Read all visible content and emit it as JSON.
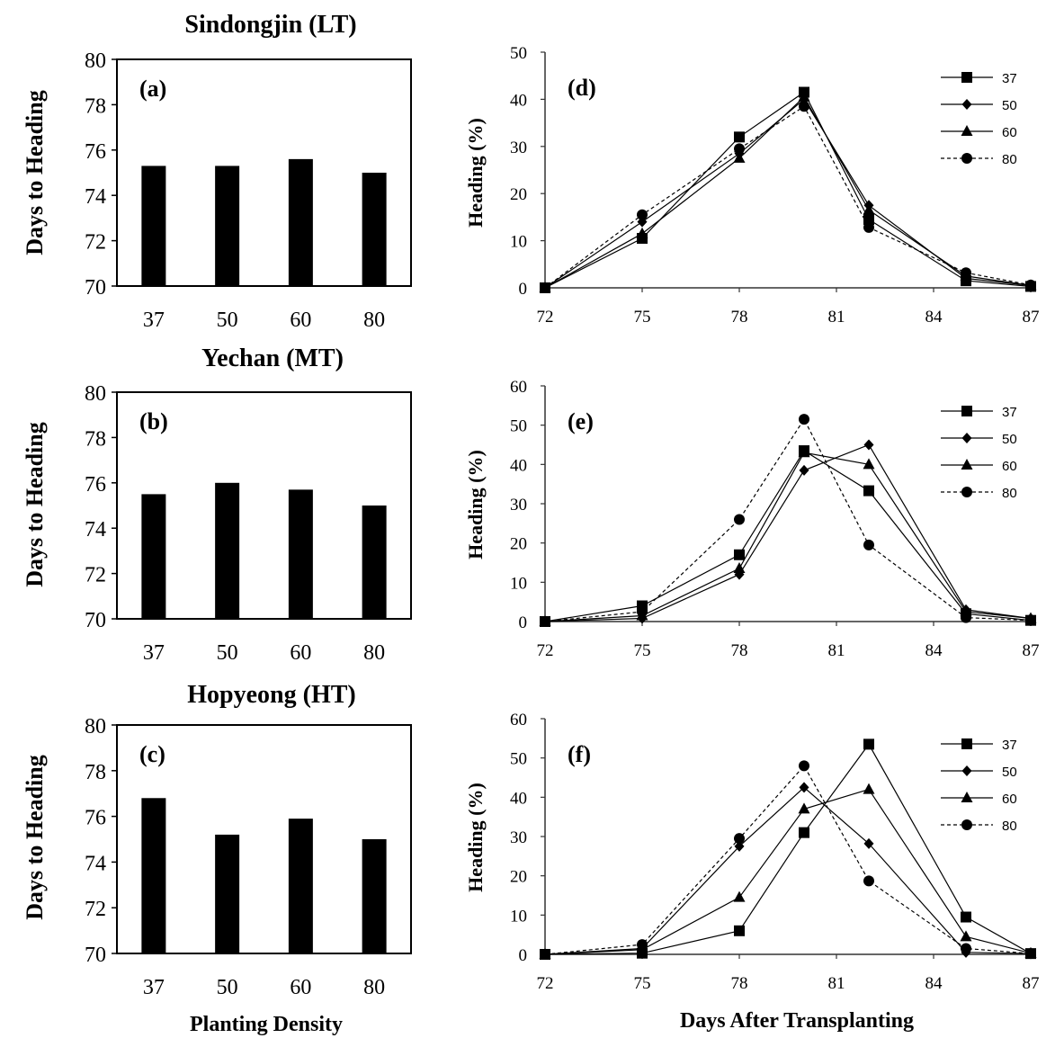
{
  "figure": {
    "titles": [
      "Sindongjin (LT)",
      "Yechan (MT)",
      "Hopyeong (HT)"
    ],
    "bar_ylabel": "Days to Heading",
    "bar_xlabel": "Planting Density",
    "line_ylabel": "Heading (%)",
    "line_xlabel": "Days After Transplanting"
  },
  "chart_data": [
    {
      "type": "bar",
      "panel": "(a)",
      "categories": [
        "37",
        "50",
        "60",
        "80"
      ],
      "values": [
        75.3,
        75.3,
        75.6,
        75.0
      ],
      "ylabel": "Days to Heading",
      "ylim": [
        70,
        80
      ],
      "yticks": [
        70,
        72,
        74,
        76,
        78,
        80
      ],
      "color": "#000000"
    },
    {
      "type": "bar",
      "panel": "(b)",
      "categories": [
        "37",
        "50",
        "60",
        "80"
      ],
      "values": [
        75.5,
        76.0,
        75.7,
        75.0
      ],
      "ylabel": "Days to Heading",
      "ylim": [
        70,
        80
      ],
      "yticks": [
        70,
        72,
        74,
        76,
        78,
        80
      ],
      "color": "#000000"
    },
    {
      "type": "bar",
      "panel": "(c)",
      "categories": [
        "37",
        "50",
        "60",
        "80"
      ],
      "values": [
        76.8,
        75.2,
        75.9,
        75.0
      ],
      "ylabel": "Days to Heading",
      "xlabel": "Planting Density",
      "ylim": [
        70,
        80
      ],
      "yticks": [
        70,
        72,
        74,
        76,
        78,
        80
      ],
      "color": "#000000"
    },
    {
      "type": "line",
      "panel": "(d)",
      "x": [
        72,
        75,
        78,
        80,
        82,
        85,
        87
      ],
      "xticks": [
        72,
        75,
        78,
        81,
        84,
        87
      ],
      "xlim": [
        72,
        87
      ],
      "ylim": [
        0,
        50
      ],
      "yticks": [
        0,
        10,
        20,
        30,
        40,
        50
      ],
      "ylabel": "Heading (%)",
      "series": [
        {
          "name": "37",
          "marker": "square",
          "dash": false,
          "values": [
            0,
            10.5,
            32,
            41.5,
            14.5,
            1.5,
            0.3
          ]
        },
        {
          "name": "50",
          "marker": "diamond",
          "dash": false,
          "values": [
            0,
            14,
            28.5,
            40,
            17.5,
            2,
            0.5
          ]
        },
        {
          "name": "60",
          "marker": "triangle",
          "dash": false,
          "values": [
            0,
            11.5,
            27.5,
            40.5,
            16.5,
            2.5,
            0.5
          ]
        },
        {
          "name": "80",
          "marker": "circle",
          "dash": true,
          "values": [
            0,
            15.5,
            29.5,
            38.5,
            12.8,
            3.2,
            0.6
          ]
        }
      ]
    },
    {
      "type": "line",
      "panel": "(e)",
      "x": [
        72,
        75,
        78,
        80,
        82,
        85,
        87
      ],
      "xticks": [
        72,
        75,
        78,
        81,
        84,
        87
      ],
      "xlim": [
        72,
        87
      ],
      "ylim": [
        0,
        60
      ],
      "yticks": [
        0,
        10,
        20,
        30,
        40,
        50,
        60
      ],
      "ylabel": "Heading (%)",
      "series": [
        {
          "name": "37",
          "marker": "square",
          "dash": false,
          "values": [
            0,
            4,
            17,
            43.5,
            33.3,
            2,
            0.3
          ]
        },
        {
          "name": "50",
          "marker": "diamond",
          "dash": false,
          "values": [
            0,
            0.8,
            12,
            38.5,
            45,
            3,
            0.8
          ]
        },
        {
          "name": "60",
          "marker": "triangle",
          "dash": false,
          "values": [
            0,
            1.5,
            13.5,
            43,
            40,
            2.5,
            0.8
          ]
        },
        {
          "name": "80",
          "marker": "circle",
          "dash": true,
          "values": [
            0,
            2.5,
            26,
            51.5,
            19.5,
            1,
            0.3
          ]
        }
      ]
    },
    {
      "type": "line",
      "panel": "(f)",
      "x": [
        72,
        75,
        78,
        80,
        82,
        85,
        87
      ],
      "xticks": [
        72,
        75,
        78,
        81,
        84,
        87
      ],
      "xlim": [
        72,
        87
      ],
      "ylim": [
        0,
        60
      ],
      "yticks": [
        0,
        10,
        20,
        30,
        40,
        50,
        60
      ],
      "ylabel": "Heading (%)",
      "xlabel": "Days After Transplanting",
      "series": [
        {
          "name": "37",
          "marker": "square",
          "dash": false,
          "values": [
            0,
            0.3,
            6,
            31,
            53.5,
            9.5,
            0.2
          ]
        },
        {
          "name": "50",
          "marker": "diamond",
          "dash": false,
          "values": [
            0,
            1.5,
            27.5,
            42.5,
            28.2,
            0.5,
            0.2
          ]
        },
        {
          "name": "60",
          "marker": "triangle",
          "dash": false,
          "values": [
            0,
            1.2,
            14.5,
            37,
            42,
            4.5,
            0.3
          ]
        },
        {
          "name": "80",
          "marker": "circle",
          "dash": true,
          "values": [
            0,
            2.5,
            29.5,
            48,
            18.7,
            1.5,
            0.2
          ]
        }
      ]
    }
  ]
}
